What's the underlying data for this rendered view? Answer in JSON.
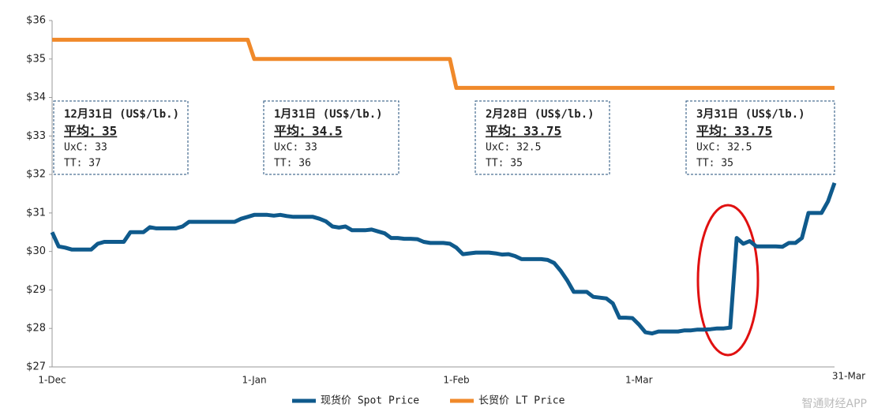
{
  "chart_data": {
    "type": "line",
    "categories": [
      "1-Dec",
      null,
      null,
      null,
      null,
      null,
      null,
      null,
      null,
      null,
      null,
      null,
      null,
      null,
      null,
      null,
      null,
      null,
      null,
      null,
      null,
      null,
      null,
      null,
      null,
      null,
      null,
      null,
      null,
      null,
      null,
      "1-Jan",
      null,
      null,
      null,
      null,
      null,
      null,
      null,
      null,
      null,
      null,
      null,
      null,
      null,
      null,
      null,
      null,
      null,
      null,
      null,
      null,
      null,
      null,
      null,
      null,
      null,
      null,
      null,
      null,
      null,
      null,
      "1-Feb",
      null,
      null,
      null,
      null,
      null,
      null,
      null,
      null,
      null,
      null,
      null,
      null,
      null,
      null,
      null,
      null,
      null,
      null,
      null,
      null,
      null,
      null,
      null,
      null,
      null,
      null,
      null,
      "1-Mar",
      null,
      null,
      null,
      null,
      null,
      null,
      null,
      null,
      null,
      null,
      null,
      null,
      null,
      null,
      null,
      null,
      null,
      null,
      null,
      null,
      null,
      null,
      null,
      null,
      null,
      null,
      null,
      null,
      null,
      "31-Mar"
    ],
    "series": [
      {
        "name": "现货价 Spot Price",
        "color": "#0f5a8c",
        "values": [
          30.5,
          30.13,
          30.1,
          30.05,
          30.05,
          30.05,
          30.05,
          30.2,
          30.25,
          30.25,
          30.25,
          30.25,
          30.5,
          30.5,
          30.5,
          30.63,
          30.6,
          30.6,
          30.6,
          30.6,
          30.65,
          30.77,
          30.77,
          30.77,
          30.77,
          30.77,
          30.77,
          30.77,
          30.77,
          30.85,
          30.9,
          30.95,
          30.95,
          30.95,
          30.93,
          30.95,
          30.92,
          30.9,
          30.9,
          30.9,
          30.9,
          30.85,
          30.78,
          30.65,
          30.62,
          30.65,
          30.55,
          30.55,
          30.55,
          30.57,
          30.52,
          30.47,
          30.35,
          30.35,
          30.33,
          30.33,
          30.32,
          30.25,
          30.22,
          30.22,
          30.22,
          30.2,
          30.1,
          29.93,
          29.95,
          29.97,
          29.97,
          29.97,
          29.95,
          29.92,
          29.93,
          29.88,
          29.8,
          29.8,
          29.8,
          29.8,
          29.78,
          29.7,
          29.5,
          29.25,
          28.95,
          28.95,
          28.95,
          28.82,
          28.8,
          28.78,
          28.65,
          28.28,
          28.28,
          28.27,
          28.1,
          27.9,
          27.87,
          27.92,
          27.92,
          27.92,
          27.92,
          27.95,
          27.95,
          27.97,
          27.97,
          27.98,
          28.0,
          28.0,
          28.02,
          30.35,
          30.2,
          30.27,
          30.13,
          30.13,
          30.13,
          30.13,
          30.12,
          30.22,
          30.22,
          30.35,
          31.0,
          31.0,
          31.0,
          31.3,
          31.78
        ]
      },
      {
        "name": "长贸价 LT Price",
        "color": "#f0892a",
        "values": [
          35.5,
          35.5,
          35.5,
          35.5,
          35.5,
          35.5,
          35.5,
          35.5,
          35.5,
          35.5,
          35.5,
          35.5,
          35.5,
          35.5,
          35.5,
          35.5,
          35.5,
          35.5,
          35.5,
          35.5,
          35.5,
          35.5,
          35.5,
          35.5,
          35.5,
          35.5,
          35.5,
          35.5,
          35.5,
          35.5,
          35.5,
          35.0,
          35.0,
          35.0,
          35.0,
          35.0,
          35.0,
          35.0,
          35.0,
          35.0,
          35.0,
          35.0,
          35.0,
          35.0,
          35.0,
          35.0,
          35.0,
          35.0,
          35.0,
          35.0,
          35.0,
          35.0,
          35.0,
          35.0,
          35.0,
          35.0,
          35.0,
          35.0,
          35.0,
          35.0,
          35.0,
          35.0,
          34.25,
          34.25,
          34.25,
          34.25,
          34.25,
          34.25,
          34.25,
          34.25,
          34.25,
          34.25,
          34.25,
          34.25,
          34.25,
          34.25,
          34.25,
          34.25,
          34.25,
          34.25,
          34.25,
          34.25,
          34.25,
          34.25,
          34.25,
          34.25,
          34.25,
          34.25,
          34.25,
          34.25,
          34.25,
          34.25,
          34.25,
          34.25,
          34.25,
          34.25,
          34.25,
          34.25,
          34.25,
          34.25,
          34.25,
          34.25,
          34.25,
          34.25,
          34.25,
          34.25,
          34.25,
          34.25,
          34.25,
          34.25,
          34.25,
          34.25,
          34.25,
          34.25,
          34.25,
          34.25,
          34.25,
          34.25,
          34.25,
          34.25,
          34.25
        ]
      }
    ],
    "ylim": [
      27,
      36
    ],
    "yticks": [
      {
        "value": 27,
        "label": "$27"
      },
      {
        "value": 28,
        "label": "$28"
      },
      {
        "value": 29,
        "label": "$29"
      },
      {
        "value": 30,
        "label": "$30"
      },
      {
        "value": 31,
        "label": "$31"
      },
      {
        "value": 32,
        "label": "$32"
      },
      {
        "value": 33,
        "label": "$33"
      },
      {
        "value": 34,
        "label": "$34"
      },
      {
        "value": 35,
        "label": "$35"
      },
      {
        "value": 36,
        "label": "$36"
      }
    ],
    "grid": false,
    "legend": "bottom",
    "annotations": [
      {
        "lines": [
          "12月31日 (US$/lb.)",
          "平均：35",
          "UxC: 33",
          "TT: 37"
        ]
      },
      {
        "lines": [
          "1月31日 (US$/lb.)",
          "平均：34.5",
          "UxC: 33",
          "TT: 36"
        ]
      },
      {
        "lines": [
          "2月28日 (US$/lb.)",
          "平均：33.75",
          "UxC: 32.5",
          "TT: 35"
        ]
      },
      {
        "lines": [
          "3月31日 (US$/lb.)",
          "平均：33.75",
          "UxC: 32.5",
          "TT: 35"
        ]
      }
    ],
    "watermark": "智通财经APP"
  }
}
